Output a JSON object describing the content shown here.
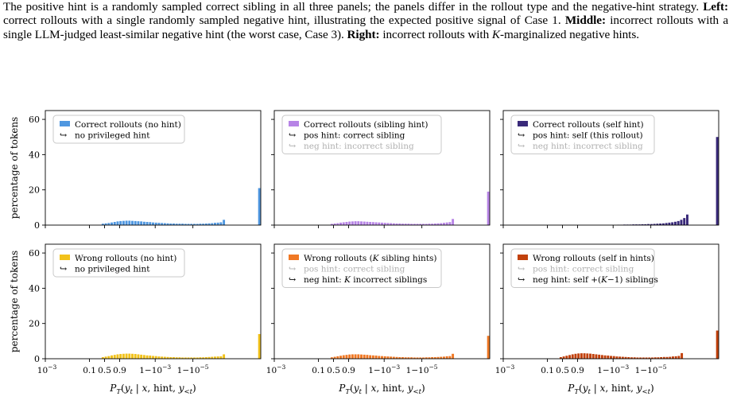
{
  "caption": {
    "intro": "The positive hint is a randomly sampled correct sibling in all three panels; the panels differ in the rollout type and the negative-hint strategy.",
    "left_label": "Left:",
    "left_text": "correct rollouts with a single randomly sampled negative hint, illustrating the expected positive signal of Case 1.",
    "middle_label": "Middle:",
    "middle_text": "incorrect rollouts with a single LLM-judged least-similar negative hint (the worst case, Case 3).",
    "right_label": "Right:",
    "right_text_pre": "incorrect rollouts with",
    "right_k": "K",
    "right_text_post": "-marginalized negative hints."
  },
  "figure": {
    "ylabel": "percentage of tokens",
    "xlabel": "P_T(y_t | x, hint, y_<t)",
    "x_tick_labels": [
      "10^-3",
      "0.1",
      "0.5",
      "0.9",
      "1-10^-3",
      "1-10^-5"
    ],
    "y_tick_labels": [
      "0",
      "20",
      "40",
      "60"
    ],
    "arrow_glyph": "↪"
  },
  "chart_data": [
    {
      "type": "bar",
      "panel": "top-left",
      "ylim": [
        0,
        65
      ],
      "legend_loc": "upper-left",
      "color": "#4f97e0",
      "legend": {
        "title": "Correct rollouts (no hint)",
        "lines": [
          {
            "text": "no privileged hint",
            "dim": false
          }
        ]
      },
      "values": [
        0,
        0,
        0,
        0,
        0,
        0,
        0,
        0,
        0,
        0,
        0,
        0,
        0,
        0,
        0,
        0,
        0,
        0,
        0,
        0.8,
        1.0,
        1.2,
        1.5,
        1.8,
        2.1,
        2.3,
        2.4,
        2.5,
        2.5,
        2.4,
        2.3,
        2.2,
        2.1,
        1.9,
        1.8,
        1.7,
        1.5,
        1.4,
        1.3,
        1.2,
        1.1,
        1.0,
        0.9,
        0.9,
        0.8,
        0.8,
        0.8,
        0.7,
        0.7,
        0.7,
        0.7,
        0.7,
        0.8,
        0.8,
        0.9,
        1.0,
        1.1,
        1.3,
        1.4,
        1.6,
        3.0,
        0,
        0,
        0,
        0,
        0,
        0,
        0,
        0,
        0,
        0,
        0,
        21
      ]
    },
    {
      "type": "bar",
      "panel": "top-middle",
      "ylim": [
        0,
        65
      ],
      "legend_loc": "upper-left",
      "color": "#b784e6",
      "legend": {
        "title": "Correct rollouts (sibling hint)",
        "lines": [
          {
            "text": "pos hint: correct sibling",
            "dim": false
          },
          {
            "text": "neg hint: incorrect sibling",
            "dim": true
          }
        ]
      },
      "values": [
        0,
        0,
        0,
        0,
        0,
        0,
        0,
        0,
        0,
        0,
        0,
        0,
        0,
        0,
        0,
        0,
        0,
        0,
        0,
        0.7,
        0.9,
        1.1,
        1.4,
        1.6,
        1.8,
        2.0,
        2.1,
        2.2,
        2.2,
        2.1,
        2.0,
        1.9,
        1.8,
        1.7,
        1.6,
        1.5,
        1.4,
        1.3,
        1.2,
        1.1,
        1.0,
        0.9,
        0.9,
        0.8,
        0.8,
        0.8,
        0.7,
        0.7,
        0.7,
        0.7,
        0.7,
        0.7,
        0.8,
        0.8,
        0.9,
        1.0,
        1.1,
        1.3,
        1.5,
        1.7,
        3.5,
        0,
        0,
        0,
        0,
        0,
        0,
        0,
        0,
        0,
        0,
        0,
        19
      ]
    },
    {
      "type": "bar",
      "panel": "top-right",
      "ylim": [
        0,
        65
      ],
      "legend_loc": "upper-left",
      "color": "#3a2a7a",
      "legend": {
        "title": "Correct rollouts (self hint)",
        "lines": [
          {
            "text": "pos hint: self (this rollout)",
            "dim": false
          },
          {
            "text": "neg hint: incorrect sibling",
            "dim": true
          }
        ]
      },
      "values": [
        0,
        0,
        0,
        0,
        0,
        0,
        0,
        0,
        0,
        0,
        0,
        0,
        0,
        0,
        0,
        0,
        0,
        0,
        0,
        0,
        0,
        0,
        0,
        0,
        0,
        0,
        0,
        0,
        0,
        0,
        0,
        0,
        0,
        0,
        0,
        0,
        0,
        0,
        0.2,
        0.2,
        0.3,
        0.3,
        0.3,
        0.4,
        0.4,
        0.4,
        0.5,
        0.5,
        0.6,
        0.6,
        0.7,
        0.8,
        0.9,
        1.0,
        1.2,
        1.4,
        1.6,
        1.9,
        2.3,
        3.0,
        4.0,
        6.0,
        0,
        0,
        0,
        0,
        0,
        0,
        0,
        0,
        0,
        50
      ]
    },
    {
      "type": "bar",
      "panel": "bottom-left",
      "ylim": [
        0,
        65
      ],
      "legend_loc": "upper-left",
      "color": "#f2c21b",
      "legend": {
        "title": "Wrong rollouts (no hint)",
        "lines": [
          {
            "text": "no privileged hint",
            "dim": false
          }
        ]
      },
      "values": [
        0,
        0,
        0,
        0,
        0,
        0,
        0,
        0,
        0,
        0,
        0,
        0,
        0,
        0,
        0,
        0,
        0,
        0,
        0,
        0.9,
        1.2,
        1.5,
        1.9,
        2.2,
        2.5,
        2.7,
        2.8,
        2.9,
        2.9,
        2.8,
        2.7,
        2.5,
        2.3,
        2.1,
        1.9,
        1.8,
        1.6,
        1.5,
        1.3,
        1.2,
        1.1,
        1.0,
        0.9,
        0.9,
        0.8,
        0.8,
        0.7,
        0.7,
        0.7,
        0.7,
        0.7,
        0.7,
        0.8,
        0.8,
        0.9,
        1.0,
        1.1,
        1.2,
        1.3,
        1.4,
        2.5,
        0,
        0,
        0,
        0,
        0,
        0,
        0,
        0,
        0,
        0,
        0,
        14
      ]
    },
    {
      "type": "bar",
      "panel": "bottom-middle",
      "ylim": [
        0,
        65
      ],
      "legend_loc": "upper-left",
      "color": "#f07824",
      "legend": {
        "title_pre": "Wrong rollouts (",
        "title_k": "K",
        "title_post": " sibling hints)",
        "lines": [
          {
            "text": "pos hint: correct sibling",
            "dim": true
          },
          {
            "text_pre": "neg hint: ",
            "text_k": "K",
            "text_post": " incorrect siblings",
            "dim": false
          }
        ]
      },
      "values": [
        0,
        0,
        0,
        0,
        0,
        0,
        0,
        0,
        0,
        0,
        0,
        0,
        0,
        0,
        0,
        0,
        0,
        0,
        0,
        0.8,
        1.1,
        1.4,
        1.7,
        2.0,
        2.2,
        2.4,
        2.5,
        2.5,
        2.5,
        2.4,
        2.3,
        2.2,
        2.0,
        1.9,
        1.8,
        1.6,
        1.5,
        1.4,
        1.3,
        1.2,
        1.1,
        1.0,
        0.9,
        0.9,
        0.8,
        0.8,
        0.8,
        0.7,
        0.7,
        0.7,
        0.7,
        0.8,
        0.8,
        0.9,
        0.9,
        1.0,
        1.1,
        1.2,
        1.4,
        1.5,
        2.8,
        0,
        0,
        0,
        0,
        0,
        0,
        0,
        0,
        0,
        0,
        0,
        13
      ]
    },
    {
      "type": "bar",
      "panel": "bottom-right",
      "ylim": [
        0,
        65
      ],
      "legend_loc": "upper-left",
      "color": "#c2410c",
      "legend": {
        "title": "Wrong rollouts (self in hints)",
        "lines": [
          {
            "text": "pos hint: correct sibling",
            "dim": true
          },
          {
            "text_pre": "neg hint: self +(",
            "text_k": "K",
            "text_post": "−1) siblings",
            "dim": false
          }
        ]
      },
      "values": [
        0,
        0,
        0,
        0,
        0,
        0,
        0,
        0,
        0,
        0,
        0,
        0,
        0,
        0,
        0,
        0,
        0,
        0,
        0,
        0.9,
        1.3,
        1.7,
        2.1,
        2.5,
        2.8,
        3.0,
        3.1,
        3.1,
        3.0,
        2.9,
        2.7,
        2.5,
        2.3,
        2.1,
        1.9,
        1.8,
        1.6,
        1.5,
        1.3,
        1.2,
        1.1,
        1.0,
        0.9,
        0.8,
        0.8,
        0.7,
        0.7,
        0.7,
        0.7,
        0.7,
        0.7,
        0.8,
        0.8,
        0.9,
        1.0,
        1.0,
        1.1,
        1.3,
        1.4,
        1.6,
        3.2,
        0,
        0,
        0,
        0,
        0,
        0,
        0,
        0,
        0,
        0,
        0,
        16
      ]
    }
  ]
}
